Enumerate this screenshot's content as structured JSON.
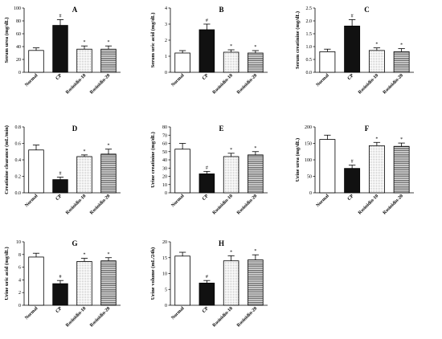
{
  "chart_data": [
    {
      "type": "bar",
      "title": "A",
      "ylabel": "Serum urea (mg/dL)",
      "categories": [
        "Normal",
        "CP",
        "Rosinidin-10",
        "Rosinidin-20"
      ],
      "values": [
        34,
        73,
        36,
        36
      ],
      "errors": [
        4,
        9,
        5,
        5
      ],
      "marks": [
        "",
        "#",
        "*",
        "*"
      ],
      "ylim": [
        0,
        100
      ],
      "yticks": [
        "0",
        "20",
        "40",
        "60",
        "80",
        "100"
      ]
    },
    {
      "type": "bar",
      "title": "B",
      "ylabel": "Serum uric acid (mg/dL)",
      "categories": [
        "Normal",
        "CP",
        "Rosinidin-10",
        "Rosinidin-20"
      ],
      "values": [
        1.2,
        2.65,
        1.25,
        1.2
      ],
      "errors": [
        0.15,
        0.35,
        0.15,
        0.15
      ],
      "marks": [
        "",
        "#",
        "*",
        "*"
      ],
      "ylim": [
        0,
        4
      ],
      "yticks": [
        "0",
        "1",
        "2",
        "3",
        "4"
      ]
    },
    {
      "type": "bar",
      "title": "C",
      "ylabel": "Serum creatinine (mg/dL)",
      "categories": [
        "Normal",
        "CP",
        "Rosinidin-10",
        "Rosinidin-20"
      ],
      "values": [
        0.8,
        1.8,
        0.85,
        0.8
      ],
      "errors": [
        0.1,
        0.25,
        0.1,
        0.12
      ],
      "marks": [
        "",
        "#",
        "*",
        "*"
      ],
      "ylim": [
        0,
        2.5
      ],
      "yticks": [
        "0.0",
        "0.5",
        "1.0",
        "1.5",
        "2.0",
        "2.5"
      ]
    },
    {
      "type": "bar",
      "title": "D",
      "ylabel": "Creatinine clearance (mL/min)",
      "categories": [
        "Normal",
        "CP",
        "Rosinidin-10",
        "Rosinidin-20"
      ],
      "values": [
        0.52,
        0.16,
        0.44,
        0.47
      ],
      "errors": [
        0.06,
        0.03,
        0.02,
        0.06
      ],
      "marks": [
        "",
        "#",
        "*",
        "*"
      ],
      "ylim": [
        0,
        0.8
      ],
      "yticks": [
        "0.0",
        "0.2",
        "0.4",
        "0.6",
        "0.8"
      ]
    },
    {
      "type": "bar",
      "title": "E",
      "ylabel": "Urine creatinine (mg/dL)",
      "categories": [
        "Normal",
        "CP",
        "Rosinidin-10",
        "Rosinidin-20"
      ],
      "values": [
        53,
        23,
        44,
        46
      ],
      "errors": [
        7,
        3,
        4,
        4
      ],
      "marks": [
        "",
        "#",
        "*",
        "*"
      ],
      "ylim": [
        0,
        80
      ],
      "yticks": [
        "0",
        "10",
        "20",
        "30",
        "40",
        "50",
        "60",
        "70",
        "80"
      ]
    },
    {
      "type": "bar",
      "title": "F",
      "ylabel": "Urine urea (mg/dL)",
      "categories": [
        "Normal",
        "CP",
        "Rosinidin-10",
        "Rosinidin-20"
      ],
      "values": [
        162,
        74,
        143,
        141
      ],
      "errors": [
        13,
        10,
        10,
        10
      ],
      "marks": [
        "",
        "#",
        "*",
        "*"
      ],
      "ylim": [
        0,
        200
      ],
      "yticks": [
        "0",
        "50",
        "100",
        "150",
        "200"
      ]
    },
    {
      "type": "bar",
      "title": "G",
      "ylabel": "Urine uric acid (mg/dL)",
      "categories": [
        "Normal",
        "CP",
        "Rosinidin-10",
        "Rosinidin-20"
      ],
      "values": [
        7.6,
        3.4,
        6.9,
        7.0
      ],
      "errors": [
        0.6,
        0.5,
        0.5,
        0.5
      ],
      "marks": [
        "",
        "#",
        "*",
        "*"
      ],
      "ylim": [
        0,
        10
      ],
      "yticks": [
        "0",
        "2",
        "4",
        "6",
        "8",
        "10"
      ]
    },
    {
      "type": "bar",
      "title": "H",
      "ylabel": "Urine volume (mL/24h)",
      "categories": [
        "Normal",
        "CP",
        "Rosinidin-10",
        "Rosinidin-20"
      ],
      "values": [
        15.5,
        7.0,
        14.0,
        14.3
      ],
      "errors": [
        1.2,
        0.8,
        1.6,
        1.6
      ],
      "marks": [
        "",
        "#",
        "*",
        "*"
      ],
      "ylim": [
        0,
        20
      ],
      "yticks": [
        "0",
        "5",
        "10",
        "15",
        "20"
      ]
    }
  ],
  "fills": [
    "white",
    "black",
    "dotted",
    "horizontal-lines"
  ]
}
